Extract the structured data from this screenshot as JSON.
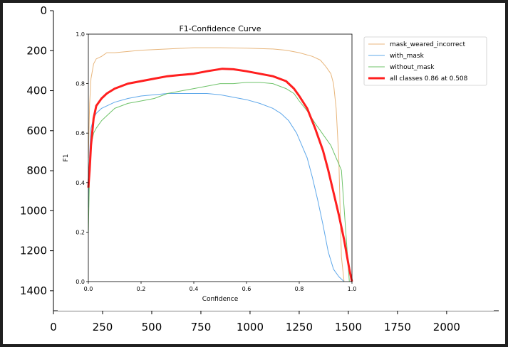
{
  "outer_plot": {
    "x_ticks": [
      "0",
      "250",
      "500",
      "750",
      "1000",
      "1250",
      "1500",
      "1750",
      "2000"
    ],
    "y_ticks": [
      "0",
      "200",
      "400",
      "600",
      "800",
      "1000",
      "1200",
      "1400"
    ],
    "xlim": [
      0,
      2265
    ],
    "ylim": [
      1500,
      0
    ]
  },
  "chart_data": {
    "type": "line",
    "title": "F1-Confidence Curve",
    "xlabel": "Confidence",
    "ylabel": "F1",
    "xlim": [
      0,
      1
    ],
    "ylim": [
      0,
      1
    ],
    "x_ticks": [
      "0.0",
      "0.2",
      "0.4",
      "0.6",
      "0.8",
      "1.0"
    ],
    "y_ticks": [
      "0.0",
      "0.2",
      "0.4",
      "0.6",
      "0.8",
      "1.0"
    ],
    "grid": false,
    "legend_position": "outside-right",
    "series": [
      {
        "name": "mask_weared_incorrect",
        "color": "#e8b67c",
        "width": 1,
        "x": [
          0.0,
          0.005,
          0.01,
          0.02,
          0.03,
          0.05,
          0.07,
          0.1,
          0.15,
          0.2,
          0.3,
          0.4,
          0.5,
          0.6,
          0.7,
          0.75,
          0.8,
          0.85,
          0.88,
          0.9,
          0.92,
          0.93,
          0.94,
          0.95,
          0.955,
          0.96,
          0.97
        ],
        "y": [
          0.5,
          0.72,
          0.82,
          0.88,
          0.9,
          0.91,
          0.925,
          0.925,
          0.93,
          0.935,
          0.94,
          0.945,
          0.945,
          0.943,
          0.94,
          0.935,
          0.925,
          0.91,
          0.895,
          0.87,
          0.84,
          0.8,
          0.7,
          0.5,
          0.3,
          0.1,
          0.0
        ]
      },
      {
        "name": "with_mask",
        "color": "#5fa8ea",
        "width": 1,
        "x": [
          0.0,
          0.005,
          0.01,
          0.02,
          0.03,
          0.05,
          0.07,
          0.1,
          0.15,
          0.2,
          0.25,
          0.3,
          0.35,
          0.4,
          0.45,
          0.5,
          0.55,
          0.6,
          0.65,
          0.7,
          0.73,
          0.76,
          0.79,
          0.81,
          0.83,
          0.85,
          0.87,
          0.89,
          0.91,
          0.93,
          0.95,
          0.97
        ],
        "y": [
          0.3,
          0.52,
          0.62,
          0.66,
          0.68,
          0.7,
          0.71,
          0.725,
          0.74,
          0.75,
          0.755,
          0.76,
          0.76,
          0.76,
          0.76,
          0.755,
          0.745,
          0.735,
          0.72,
          0.7,
          0.68,
          0.65,
          0.6,
          0.55,
          0.5,
          0.42,
          0.33,
          0.23,
          0.12,
          0.05,
          0.02,
          0.0
        ]
      },
      {
        "name": "without_mask",
        "color": "#6fc36a",
        "width": 1,
        "x": [
          0.0,
          0.005,
          0.01,
          0.02,
          0.03,
          0.05,
          0.07,
          0.1,
          0.15,
          0.2,
          0.25,
          0.3,
          0.35,
          0.4,
          0.45,
          0.5,
          0.55,
          0.6,
          0.65,
          0.7,
          0.75,
          0.78,
          0.8,
          0.83,
          0.86,
          0.88,
          0.9,
          0.92,
          0.94,
          0.96,
          0.97,
          0.98,
          0.99
        ],
        "y": [
          0.2,
          0.45,
          0.55,
          0.6,
          0.62,
          0.65,
          0.67,
          0.7,
          0.72,
          0.73,
          0.74,
          0.76,
          0.77,
          0.78,
          0.79,
          0.8,
          0.8,
          0.805,
          0.805,
          0.8,
          0.78,
          0.76,
          0.73,
          0.69,
          0.64,
          0.61,
          0.58,
          0.55,
          0.5,
          0.45,
          0.3,
          0.15,
          0.0
        ]
      },
      {
        "name": "all classes 0.86 at 0.508",
        "color": "#ff1f1f",
        "width": 3,
        "x": [
          0.0,
          0.005,
          0.01,
          0.02,
          0.03,
          0.05,
          0.07,
          0.1,
          0.15,
          0.2,
          0.25,
          0.3,
          0.35,
          0.4,
          0.45,
          0.508,
          0.55,
          0.6,
          0.65,
          0.7,
          0.75,
          0.78,
          0.8,
          0.83,
          0.86,
          0.89,
          0.91,
          0.93,
          0.95,
          0.97,
          0.98,
          0.99,
          1.0
        ],
        "y": [
          0.38,
          0.45,
          0.55,
          0.66,
          0.71,
          0.74,
          0.76,
          0.78,
          0.8,
          0.81,
          0.82,
          0.83,
          0.835,
          0.84,
          0.85,
          0.86,
          0.858,
          0.85,
          0.84,
          0.83,
          0.81,
          0.78,
          0.75,
          0.7,
          0.62,
          0.53,
          0.45,
          0.36,
          0.27,
          0.17,
          0.11,
          0.05,
          0.0
        ]
      }
    ]
  }
}
